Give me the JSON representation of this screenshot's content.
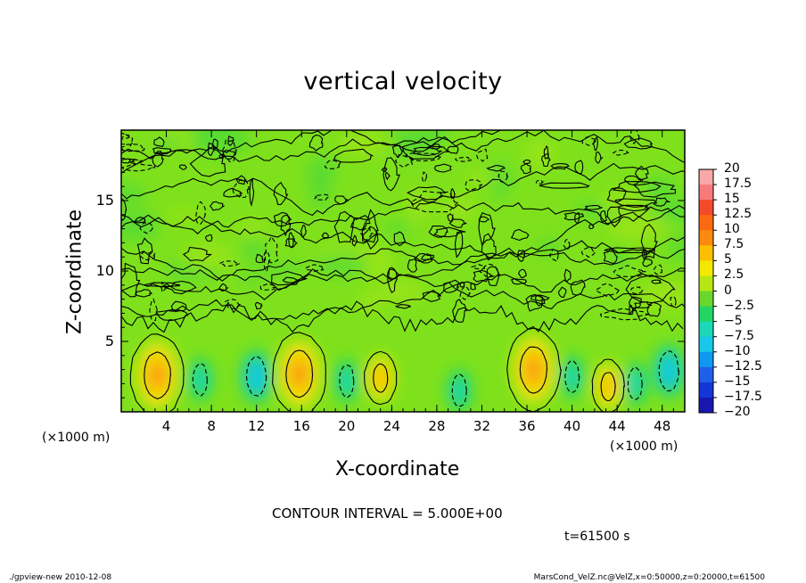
{
  "chart_data": {
    "type": "heatmap",
    "title": "vertical velocity",
    "xlabel": "X-coordinate",
    "ylabel": "Z-coordinate",
    "x_unit_left": "(×1000 m)",
    "x_unit_right": "(×1000 m)",
    "xlim": [
      0,
      50
    ],
    "ylim": [
      0,
      20
    ],
    "x_ticks": [
      "4",
      "8",
      "12",
      "16",
      "20",
      "24",
      "28",
      "32",
      "36",
      "40",
      "44",
      "48"
    ],
    "y_ticks": [
      "5",
      "10",
      "15"
    ],
    "colorbar": {
      "labels": [
        "20",
        "17.5",
        "15",
        "12.5",
        "10",
        "7.5",
        "5",
        "2.5",
        "0",
        "−2.5",
        "−5",
        "−7.5",
        "−10",
        "−12.5",
        "−15",
        "−17.5",
        "−20"
      ],
      "colors": [
        "#f8a8a8",
        "#f77a7a",
        "#f54a2a",
        "#fb6a10",
        "#fb8a0e",
        "#fcc000",
        "#f2e800",
        "#b8e614",
        "#68d82c",
        "#22d664",
        "#1ad8b8",
        "#18c8e8",
        "#0e98f0",
        "#2060e8",
        "#1436d8",
        "#1818b0",
        "#6a14b8"
      ]
    },
    "features": [
      {
        "x": 3.2,
        "z": 2.6,
        "w": 7.5,
        "kind": "updraft"
      },
      {
        "x": 15.8,
        "z": 2.7,
        "w": 7.5,
        "kind": "updraft"
      },
      {
        "x": 36.6,
        "z": 3.0,
        "w": 7.5,
        "kind": "updraft"
      },
      {
        "x": 23.0,
        "z": 2.4,
        "w": 5,
        "kind": "updraft"
      },
      {
        "x": 43.2,
        "z": 1.8,
        "w": 5,
        "kind": "updraft"
      },
      {
        "x": 7.0,
        "z": 2.3,
        "w": -5,
        "kind": "downdraft"
      },
      {
        "x": 12.0,
        "z": 2.5,
        "w": -7.5,
        "kind": "downdraft"
      },
      {
        "x": 20.0,
        "z": 2.2,
        "w": -5,
        "kind": "downdraft"
      },
      {
        "x": 30.0,
        "z": 1.5,
        "w": -5,
        "kind": "downdraft"
      },
      {
        "x": 40.0,
        "z": 2.5,
        "w": -5,
        "kind": "downdraft"
      },
      {
        "x": 45.6,
        "z": 2.0,
        "w": -5,
        "kind": "downdraft"
      },
      {
        "x": 48.6,
        "z": 2.9,
        "w": -7.5,
        "kind": "downdraft"
      }
    ]
  },
  "contour_interval": "CONTOUR INTERVAL = 5.000E+00",
  "time_label": "t=61500 s",
  "footer_left": "./gpview-new  2010-12-08",
  "footer_right": "MarsCond_VelZ.nc@VelZ,x=0:50000,z=0:20000,t=61500"
}
